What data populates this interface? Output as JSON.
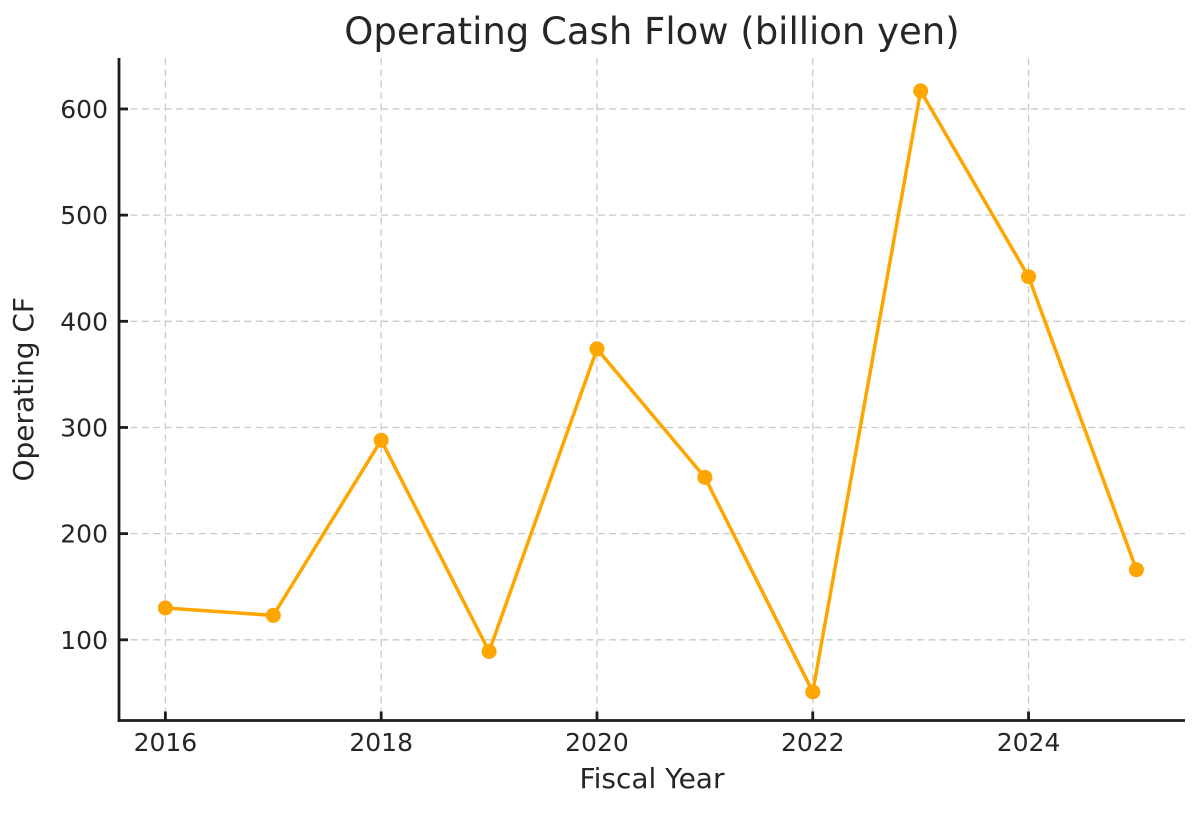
{
  "page": {
    "background_color": "#ffffff"
  },
  "chart_data": {
    "type": "line",
    "title": "Operating Cash Flow (billion yen)",
    "xlabel": "Fiscal Year",
    "ylabel": "Operating CF",
    "series": [
      {
        "name": "Operating CF",
        "x": [
          2016,
          2017,
          2018,
          2019,
          2020,
          2021,
          2022,
          2023,
          2024,
          2025
        ],
        "values": [
          130,
          123,
          288,
          89,
          374,
          253,
          51,
          617,
          442,
          166
        ],
        "color": "#FFA500",
        "marker": "circle"
      }
    ],
    "x_tick_values": [
      2016,
      2018,
      2020,
      2022,
      2024
    ],
    "x_tick_labels": [
      "2016",
      "2018",
      "2020",
      "2022",
      "2024"
    ],
    "y_tick_values": [
      100,
      200,
      300,
      400,
      500,
      600
    ],
    "y_tick_labels": [
      "100",
      "200",
      "300",
      "400",
      "500",
      "600"
    ],
    "xlim": [
      2015.57,
      2025.45
    ],
    "ylim": [
      24,
      648
    ],
    "grid": true,
    "grid_style": "dashed",
    "legend_position": "none",
    "colors": {
      "line": "#FFA500",
      "marker": "#FFA500",
      "grid": "#c9c9c9",
      "spine": "#1c1c1c",
      "tick": "#1c1c1c",
      "text": "#262626",
      "background": "#ffffff"
    }
  }
}
